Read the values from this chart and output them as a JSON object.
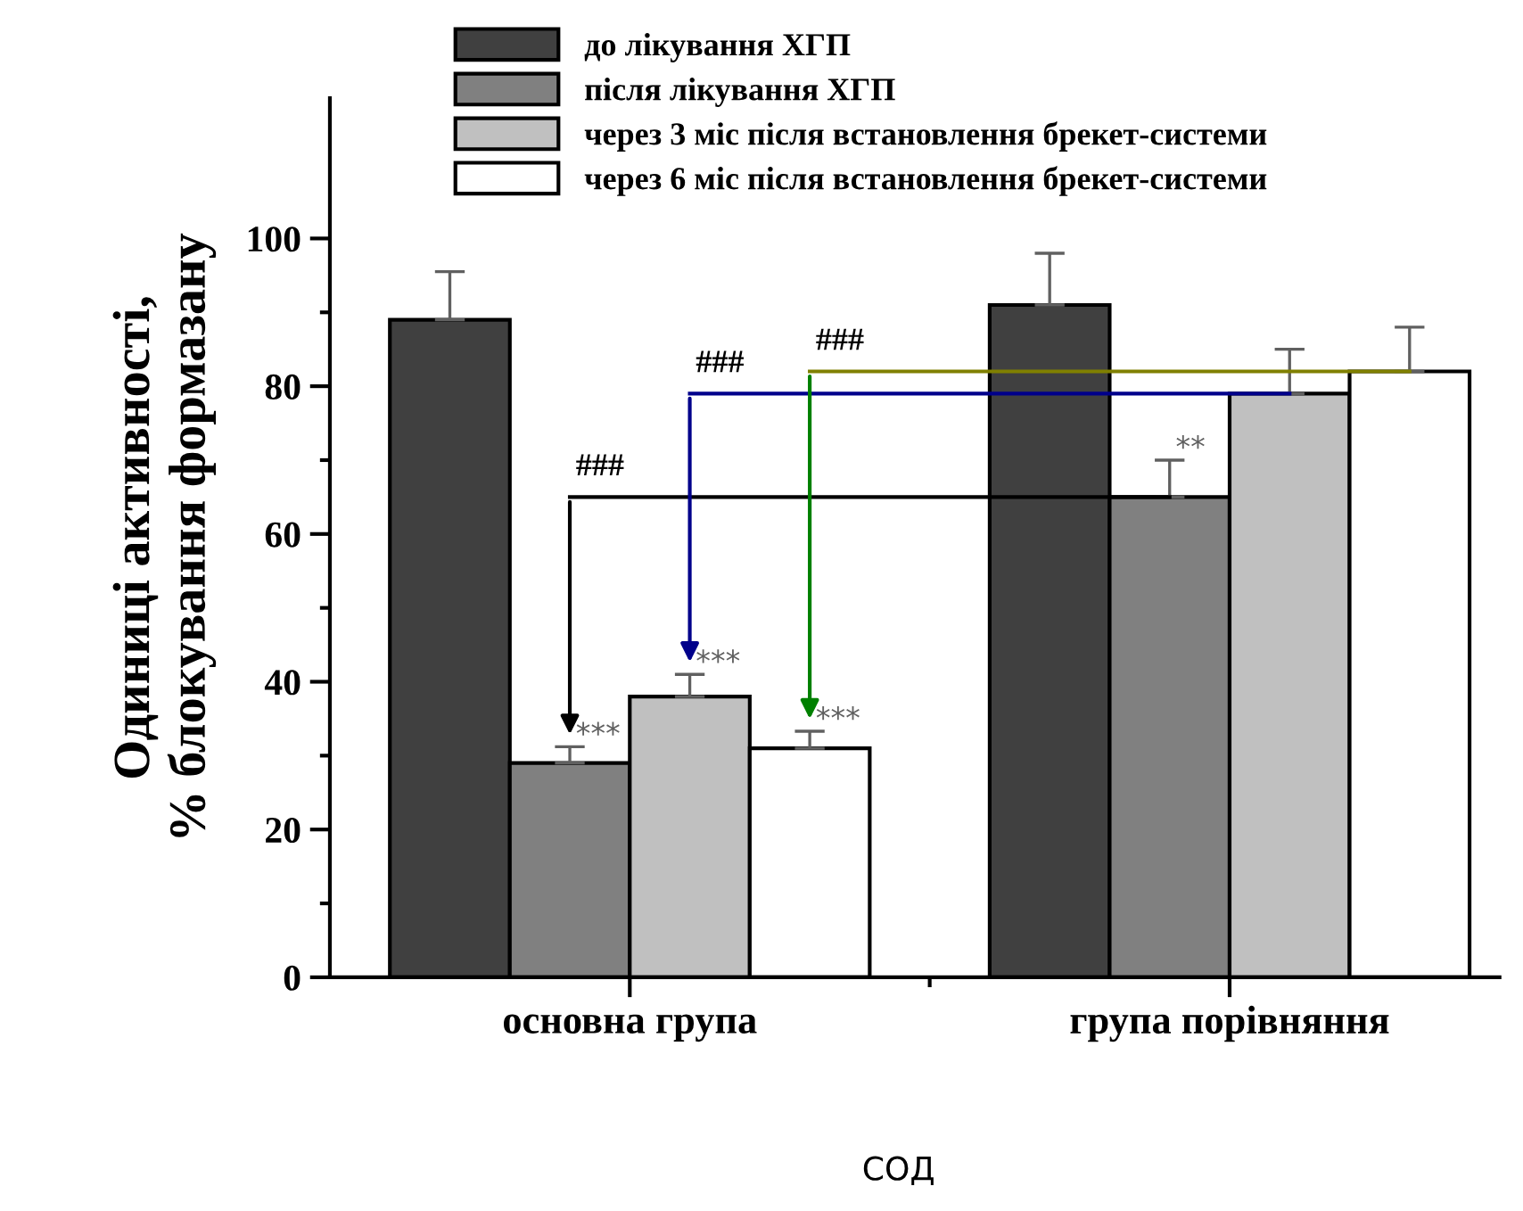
{
  "chart_data": {
    "type": "bar",
    "xlabel": "СОД",
    "ylabel": "Одиниці активності,\n% блокування формазану",
    "categories": [
      "основна група",
      "група порівняння"
    ],
    "series": [
      {
        "name": "до лікування ХГП",
        "color": "#404040",
        "values": [
          89,
          91
        ],
        "errors": [
          [
            89,
            95.5
          ],
          [
            91,
            98
          ]
        ]
      },
      {
        "name": "після лікування ХГП",
        "color": "#808080",
        "values": [
          29,
          65
        ],
        "errors": [
          [
            29,
            31.2
          ],
          [
            65,
            70
          ]
        ],
        "value_labels": [
          "***",
          "**"
        ]
      },
      {
        "name": "через 3 міс після встановлення брекет-системи",
        "color": "#c0c0c0",
        "values": [
          38,
          79
        ],
        "errors": [
          [
            38,
            41
          ],
          [
            79,
            85
          ]
        ],
        "value_labels": [
          "***",
          null
        ]
      },
      {
        "name": "через 6 міс після встановлення брекет-системи",
        "color": "#ffffff",
        "values": [
          31,
          82
        ],
        "errors": [
          [
            31,
            33.3
          ],
          [
            82,
            88
          ]
        ],
        "value_labels": [
          "***",
          null
        ]
      }
    ],
    "annotations": [
      "###",
      "###",
      "###"
    ],
    "ylim": [
      0,
      119
    ],
    "yticks": [
      0,
      20,
      40,
      60,
      80,
      100
    ],
    "grid": false,
    "legend": "top"
  }
}
